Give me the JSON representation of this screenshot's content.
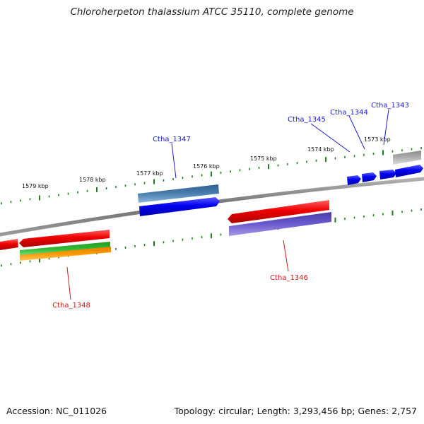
{
  "title": "Chloroherpeton thalassium ATCC 35110, complete genome",
  "footer": {
    "accession": "Accession: NC_011026",
    "topology": "Topology: circular; Length: 3,293,456 bp; Genes: 2,757"
  },
  "scale_labels": [
    "1573 kbp",
    "1574 kbp",
    "1575 kbp",
    "1576 kbp",
    "1577 kbp",
    "1578 kbp",
    "1579 kbp"
  ],
  "gene_labels": {
    "forward": [
      "Ctha_1343",
      "Ctha_1344",
      "Ctha_1345",
      "Ctha_1347"
    ],
    "reverse": [
      "Ctha_1346",
      "Ctha_1348"
    ]
  },
  "colors": {
    "backbone": "#808080",
    "tick": "#1e7d1e",
    "forward_label": "#1a1acc",
    "reverse_label": "#cc1a1a",
    "cds_blue": "#0000ee",
    "cds_red": "#ee0000",
    "steelblue": "#4a7fb0",
    "purple": "#6a5acd",
    "green": "#33bb33",
    "orange": "#ff9900",
    "grey": "#b0b0b0"
  }
}
